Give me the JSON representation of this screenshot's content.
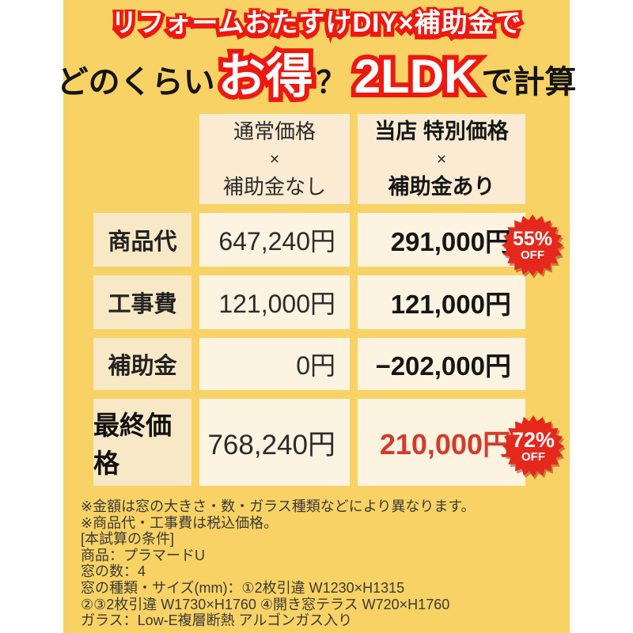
{
  "title": {
    "line1": "リフォームおたすけDIY×補助金で",
    "line2": {
      "seg1": "どのくらい",
      "accent1": "お得",
      "question": "？",
      "accent2": "2LDK",
      "seg2": "で計算"
    }
  },
  "table": {
    "headers": {
      "normal": {
        "line1": "通常価格",
        "line2": "×",
        "line3": "補助金なし"
      },
      "special": {
        "line1": "当店 特別価格",
        "line2": "×",
        "line3": "補助金あり"
      }
    },
    "rows": [
      {
        "label": "商品代",
        "normal": "647,240円",
        "special": "291,000円"
      },
      {
        "label": "工事費",
        "normal": "121,000円",
        "special": "121,000円"
      },
      {
        "label": "補助金",
        "normal": "0円",
        "special": "−202,000円"
      },
      {
        "label": "最終価格",
        "normal": "768,240円",
        "special": "210,000円"
      }
    ],
    "badges": [
      {
        "percent": "55%",
        "off": "OFF"
      },
      {
        "percent": "72%",
        "off": "OFF"
      }
    ]
  },
  "notes": [
    "※金額は窓の大きさ・数・ガラス種類などにより異なります。",
    "※商品代・工事費は税込価格。",
    "[本試算の条件]",
    "商品：プラマードU",
    "窓の数：4",
    "窓の種類・サイズ(mm)：①2枚引違 W1230×H1315",
    "②③2枚引違 W1730×H1760 ④開き窓テラス W720×H1760",
    "ガラス：Low-E複層断熱 アルゴンガス入り"
  ],
  "colors": {
    "bg_yellow": "#F8D264",
    "cell_cream": "#FCF3E1",
    "cell_tan": "#F8E8C6",
    "header_tan": "#FAEBD2",
    "red_outline": "#EE1810",
    "red_badge": "#E6281C",
    "red_price": "#D43A2A"
  }
}
